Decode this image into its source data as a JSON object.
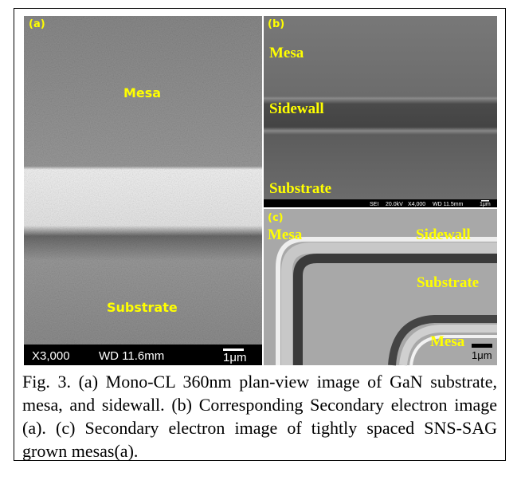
{
  "panels": [
    {
      "label": "(a)",
      "annotations": [
        "Mesa",
        "Substrate"
      ],
      "info_bar": [
        "X3,000",
        "WD 11.6mm",
        "1μm"
      ]
    },
    {
      "label": "(b)",
      "annotations": [
        "Mesa",
        "Sidewall",
        "Substrate"
      ],
      "info_bar": [
        "SEI",
        "20.0kV",
        "X4,000",
        "WD 11.5mm",
        "1μm"
      ]
    },
    {
      "label": "(c)",
      "annotations": [
        "Mesa",
        "Sidewall",
        "Substrate",
        "Mesa"
      ],
      "info_bar": [
        "1μm"
      ]
    }
  ],
  "caption": "Fig. 3. (a) Mono-CL 360nm plan-view image of GaN substrate, mesa, and sidewall. (b) Corresponding Secondary electron image (a). (c) Secondary electron image of tightly spaced SNS-SAG grown mesas(a)."
}
